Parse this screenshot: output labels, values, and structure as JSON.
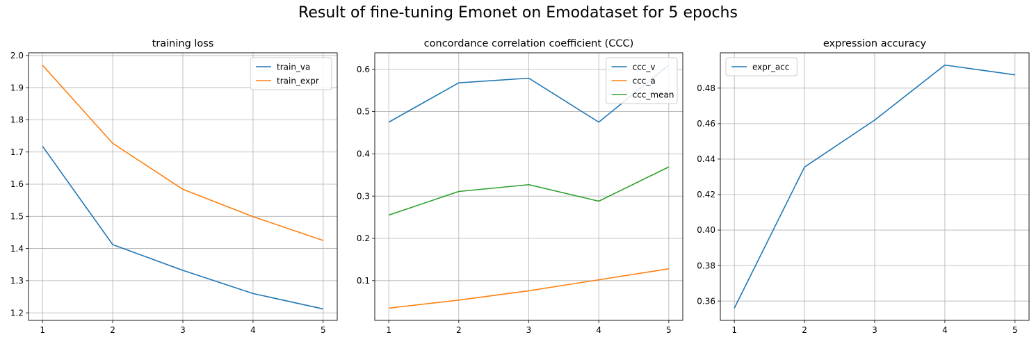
{
  "figure": {
    "suptitle": "Result of fine-tuning Emonet on Emodataset for 5 epochs"
  },
  "chart_data": [
    {
      "type": "line",
      "title": "training loss",
      "xlabel": "",
      "ylabel": "",
      "x": [
        1,
        2,
        3,
        4,
        5
      ],
      "xticks": [
        "1",
        "2",
        "3",
        "4",
        "5"
      ],
      "xlim": [
        0.8,
        5.2
      ],
      "ylim": [
        1.1765,
        2.0085
      ],
      "yticks": [
        "1.2",
        "1.3",
        "1.4",
        "1.5",
        "1.6",
        "1.7",
        "1.8",
        "1.9",
        "2.0"
      ],
      "ytick_values": [
        1.2,
        1.3,
        1.4,
        1.5,
        1.6,
        1.7,
        1.8,
        1.9,
        2.0
      ],
      "grid": true,
      "legend": "upper right",
      "series": [
        {
          "name": "train_va",
          "color": "#1f77b4",
          "values": [
            1.718,
            1.412,
            1.332,
            1.26,
            1.212
          ]
        },
        {
          "name": "train_expr",
          "color": "#ff7f0e",
          "values": [
            1.97,
            1.727,
            1.584,
            1.499,
            1.425
          ]
        }
      ]
    },
    {
      "type": "line",
      "title": "concordance correlation coefficient (CCC)",
      "xlabel": "",
      "ylabel": "",
      "x": [
        1,
        2,
        3,
        4,
        5
      ],
      "xticks": [
        "1",
        "2",
        "3",
        "4",
        "5"
      ],
      "xlim": [
        0.8,
        5.2
      ],
      "ylim": [
        0.006,
        0.639
      ],
      "yticks": [
        "0.1",
        "0.2",
        "0.3",
        "0.4",
        "0.5",
        "0.6"
      ],
      "ytick_values": [
        0.1,
        0.2,
        0.3,
        0.4,
        0.5,
        0.6
      ],
      "grid": true,
      "legend": "upper right",
      "series": [
        {
          "name": "ccc_v",
          "color": "#1f77b4",
          "values": [
            0.475,
            0.568,
            0.579,
            0.475,
            0.61
          ]
        },
        {
          "name": "ccc_a",
          "color": "#ff7f0e",
          "values": [
            0.035,
            0.054,
            0.076,
            0.102,
            0.128
          ]
        },
        {
          "name": "ccc_mean",
          "color": "#2ca02c",
          "values": [
            0.255,
            0.311,
            0.327,
            0.288,
            0.369
          ]
        }
      ]
    },
    {
      "type": "line",
      "title": "expression accuracy",
      "xlabel": "",
      "ylabel": "",
      "x": [
        1,
        2,
        3,
        4,
        5
      ],
      "xticks": [
        "1",
        "2",
        "3",
        "4",
        "5"
      ],
      "xlim": [
        0.8,
        5.2
      ],
      "ylim": [
        0.3491,
        0.4999
      ],
      "yticks": [
        "0.36",
        "0.38",
        "0.40",
        "0.42",
        "0.44",
        "0.46",
        "0.48"
      ],
      "ytick_values": [
        0.36,
        0.38,
        0.4,
        0.42,
        0.44,
        0.46,
        0.48
      ],
      "grid": true,
      "legend": "upper left",
      "series": [
        {
          "name": "expr_acc",
          "color": "#1f77b4",
          "values": [
            0.356,
            0.4355,
            0.462,
            0.493,
            0.4875
          ]
        }
      ]
    }
  ]
}
